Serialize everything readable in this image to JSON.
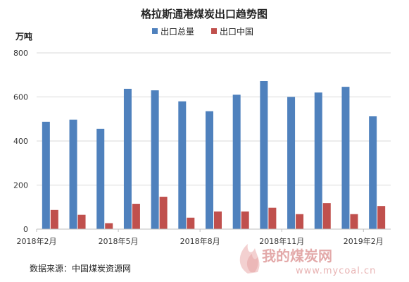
{
  "chart_data": {
    "type": "bar",
    "title": "格拉斯通港煤炭出口趋势图",
    "ylabel": "万吨",
    "ylim": [
      0,
      800
    ],
    "yticks": [
      0,
      200,
      400,
      600,
      800
    ],
    "grid": true,
    "legend_position": "top",
    "x_tick_labels": [
      "2018年2月",
      "2018年5月",
      "2018年8月",
      "2018年11月",
      "2019年2月"
    ],
    "x_tick_months": [
      "2018-02",
      "2018-05",
      "2018-08",
      "2018-11",
      "2019-02"
    ],
    "categories": [
      "2018-02",
      "2018-03",
      "2018-04",
      "2018-05",
      "2018-06",
      "2018-07",
      "2018-08",
      "2018-09",
      "2018-10",
      "2018-11",
      "2018-12",
      "2019-01",
      "2019-02"
    ],
    "series": [
      {
        "name": "出口总量",
        "color": "#4f81bd",
        "values": [
          487,
          497,
          455,
          637,
          630,
          580,
          535,
          610,
          672,
          600,
          620,
          646,
          512
        ]
      },
      {
        "name": "出口中国",
        "color": "#c0504d",
        "values": [
          87,
          65,
          27,
          115,
          147,
          52,
          80,
          80,
          97,
          68,
          118,
          68,
          105
        ]
      }
    ]
  },
  "source_note": "数据来源：中国煤炭资源网",
  "watermark": {
    "text": "我的煤炭网",
    "url": "www.mycoal.cn",
    "color": "#d98080"
  }
}
